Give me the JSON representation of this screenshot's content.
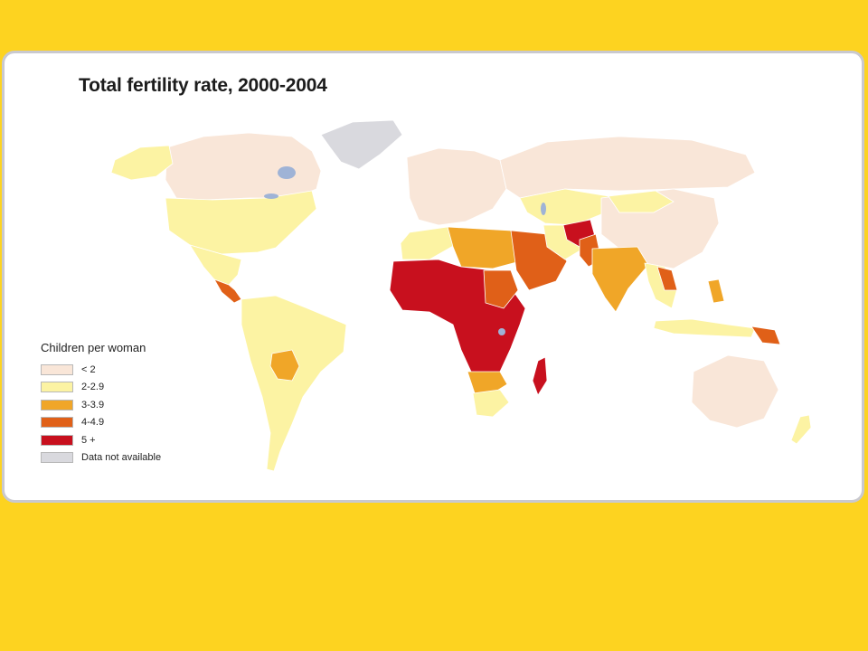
{
  "map": {
    "title": "Total fertility rate, 2000-2004",
    "legend": {
      "title": "Children per woman",
      "items": [
        {
          "label": "< 2",
          "color": "#f9e6d8"
        },
        {
          "label": "2-2.9",
          "color": "#fcf3a3"
        },
        {
          "label": "3-3.9",
          "color": "#f0a628"
        },
        {
          "label": "4-4.9",
          "color": "#e06018"
        },
        {
          "label": "5 +",
          "color": "#c8101e"
        },
        {
          "label": "Data not available",
          "color": "#d9d9de"
        }
      ]
    },
    "colors": {
      "background": "#fdd320",
      "ocean": "#ffffff",
      "border": "#c9c9cf",
      "lake": "#9fb3d6"
    }
  }
}
